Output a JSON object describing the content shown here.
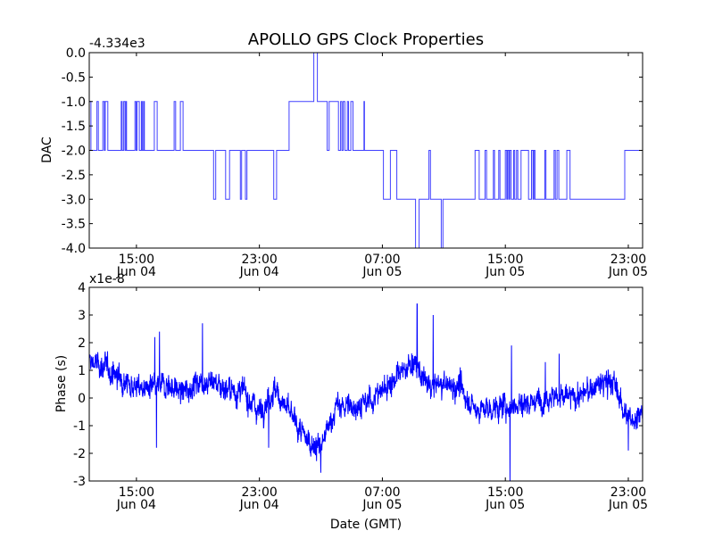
{
  "chart_data": [
    {
      "type": "line",
      "title": "APOLLO GPS Clock Properties",
      "ylabel": "DAC",
      "xlabel": "",
      "offset_label": "-4.334e3",
      "x_units": "hours since Jun 04 00:00 GMT",
      "xlim": [
        11.93,
        47.93
      ],
      "ylim": [
        -4.0,
        0.0
      ],
      "yticks": [
        {
          "v": 0,
          "label": "0.0"
        },
        {
          "v": -0.5,
          "label": "-0.5"
        },
        {
          "v": -1,
          "label": "-1.0"
        },
        {
          "v": -1.5,
          "label": "-1.5"
        },
        {
          "v": -2,
          "label": "-2.0"
        },
        {
          "v": -2.5,
          "label": "-2.5"
        },
        {
          "v": -3,
          "label": "-3.0"
        },
        {
          "v": -3.5,
          "label": "-3.5"
        },
        {
          "v": -4,
          "label": "-4.0"
        }
      ],
      "xticks": [
        {
          "v": 15,
          "time": "15:00",
          "date": "Jun 04"
        },
        {
          "v": 23,
          "time": "23:00",
          "date": "Jun 04"
        },
        {
          "v": 31,
          "time": "07:00",
          "date": "Jun 05"
        },
        {
          "v": 39,
          "time": "15:00",
          "date": "Jun 05"
        },
        {
          "v": 47,
          "time": "23:00",
          "date": "Jun 05"
        }
      ],
      "color": "#0000ff",
      "step_points": [
        [
          11.93,
          -1
        ],
        [
          12.04,
          -2
        ],
        [
          12.43,
          -1
        ],
        [
          12.52,
          -2
        ],
        [
          12.81,
          -1
        ],
        [
          12.91,
          -2
        ],
        [
          12.97,
          -1
        ],
        [
          13.14,
          -2
        ],
        [
          14.01,
          -1
        ],
        [
          14.07,
          -2
        ],
        [
          14.17,
          -1
        ],
        [
          14.26,
          -2
        ],
        [
          14.32,
          -1
        ],
        [
          14.36,
          -2
        ],
        [
          14.9,
          -1
        ],
        [
          14.98,
          -2
        ],
        [
          15.04,
          -1
        ],
        [
          15.19,
          -2
        ],
        [
          15.32,
          -1
        ],
        [
          15.38,
          -2
        ],
        [
          15.46,
          -1
        ],
        [
          15.52,
          -2
        ],
        [
          16.16,
          -1
        ],
        [
          16.35,
          -2
        ],
        [
          17.45,
          -1
        ],
        [
          17.55,
          -2
        ],
        [
          17.86,
          -1
        ],
        [
          18.03,
          -2
        ],
        [
          20.02,
          -3
        ],
        [
          20.16,
          -2
        ],
        [
          20.8,
          -3
        ],
        [
          21.06,
          -2
        ],
        [
          21.76,
          -3
        ],
        [
          21.84,
          -2
        ],
        [
          22.09,
          -3
        ],
        [
          22.19,
          -2
        ],
        [
          23.93,
          -3
        ],
        [
          24.12,
          -2
        ],
        [
          24.93,
          -1
        ],
        [
          26.54,
          0
        ],
        [
          26.77,
          -1
        ],
        [
          27.41,
          -2
        ],
        [
          27.54,
          -1
        ],
        [
          28.14,
          -2
        ],
        [
          28.28,
          -1
        ],
        [
          28.37,
          -2
        ],
        [
          28.45,
          -1
        ],
        [
          28.56,
          -2
        ],
        [
          28.72,
          -1
        ],
        [
          28.8,
          -2
        ],
        [
          28.95,
          -1
        ],
        [
          29.09,
          -2
        ],
        [
          29.8,
          -1
        ],
        [
          29.84,
          -2
        ],
        [
          31.07,
          -3
        ],
        [
          31.52,
          -2
        ],
        [
          31.94,
          -3
        ],
        [
          33.16,
          -4
        ],
        [
          33.39,
          -3
        ],
        [
          34.03,
          -2
        ],
        [
          34.13,
          -3
        ],
        [
          34.83,
          -4
        ],
        [
          34.94,
          -3
        ],
        [
          37.03,
          -2
        ],
        [
          37.3,
          -3
        ],
        [
          37.68,
          -2
        ],
        [
          37.78,
          -3
        ],
        [
          38.22,
          -2
        ],
        [
          38.3,
          -3
        ],
        [
          38.57,
          -2
        ],
        [
          38.65,
          -3
        ],
        [
          39.0,
          -2
        ],
        [
          39.09,
          -3
        ],
        [
          39.15,
          -2
        ],
        [
          39.23,
          -3
        ],
        [
          39.29,
          -2
        ],
        [
          39.38,
          -3
        ],
        [
          39.54,
          -2
        ],
        [
          39.61,
          -3
        ],
        [
          39.73,
          -2
        ],
        [
          39.81,
          -3
        ],
        [
          40.02,
          -2
        ],
        [
          40.51,
          -3
        ],
        [
          40.7,
          -2
        ],
        [
          40.8,
          -3
        ],
        [
          40.86,
          -2
        ],
        [
          40.93,
          -3
        ],
        [
          41.57,
          -2
        ],
        [
          41.64,
          -3
        ],
        [
          42.17,
          -2
        ],
        [
          42.25,
          -3
        ],
        [
          42.36,
          -2
        ],
        [
          42.48,
          -3
        ],
        [
          43.0,
          -2
        ],
        [
          43.21,
          -3
        ],
        [
          46.77,
          -2
        ],
        [
          47.93,
          -2
        ]
      ]
    },
    {
      "type": "line",
      "title": "",
      "ylabel": "Phase (s)",
      "xlabel": "Date (GMT)",
      "offset_label": "x1e-8",
      "x_units": "hours since Jun 04 00:00 GMT",
      "xlim": [
        11.93,
        47.93
      ],
      "ylim": [
        -3,
        4
      ],
      "yticks": [
        {
          "v": 4,
          "label": "4"
        },
        {
          "v": 3,
          "label": "3"
        },
        {
          "v": 2,
          "label": "2"
        },
        {
          "v": 1,
          "label": "1"
        },
        {
          "v": 0,
          "label": "0"
        },
        {
          "v": -1,
          "label": "-1"
        },
        {
          "v": -2,
          "label": "-2"
        },
        {
          "v": -3,
          "label": "-3"
        }
      ],
      "xticks": [
        {
          "v": 15,
          "time": "15:00",
          "date": "Jun 04"
        },
        {
          "v": 23,
          "time": "23:00",
          "date": "Jun 04"
        },
        {
          "v": 31,
          "time": "07:00",
          "date": "Jun 05"
        },
        {
          "v": 39,
          "time": "15:00",
          "date": "Jun 05"
        },
        {
          "v": 47,
          "time": "23:00",
          "date": "Jun 05"
        }
      ],
      "color": "#0000ff",
      "trend_hourly_start": 12,
      "trend_hourly": [
        1.3,
        1.1,
        0.7,
        0.4,
        0.3,
        0.5,
        0.2,
        0.6,
        0.6,
        0.3,
        0.2,
        -0.5,
        0.3,
        -0.6,
        -1.5,
        -1.8,
        -0.3,
        -0.3,
        -0.2,
        0.3,
        0.8,
        1.3,
        0.4,
        0.5,
        0.4,
        -0.4,
        -0.4,
        -0.3,
        -0.2,
        -0.1,
        0.1,
        0.0,
        0.1,
        0.5,
        0.6,
        -0.8,
        -0.5
      ],
      "spikes": [
        [
          16.3,
          -1.8
        ],
        [
          16.5,
          2.4
        ],
        [
          16.2,
          2.2
        ],
        [
          19.3,
          2.7
        ],
        [
          23.6,
          -1.8
        ],
        [
          27.0,
          -2.7
        ],
        [
          33.26,
          3.4
        ],
        [
          34.3,
          3.0
        ],
        [
          39.3,
          -3.0
        ],
        [
          39.4,
          1.9
        ],
        [
          41.6,
          1.3
        ],
        [
          42.5,
          1.6
        ],
        [
          47.0,
          -1.9
        ]
      ]
    }
  ]
}
